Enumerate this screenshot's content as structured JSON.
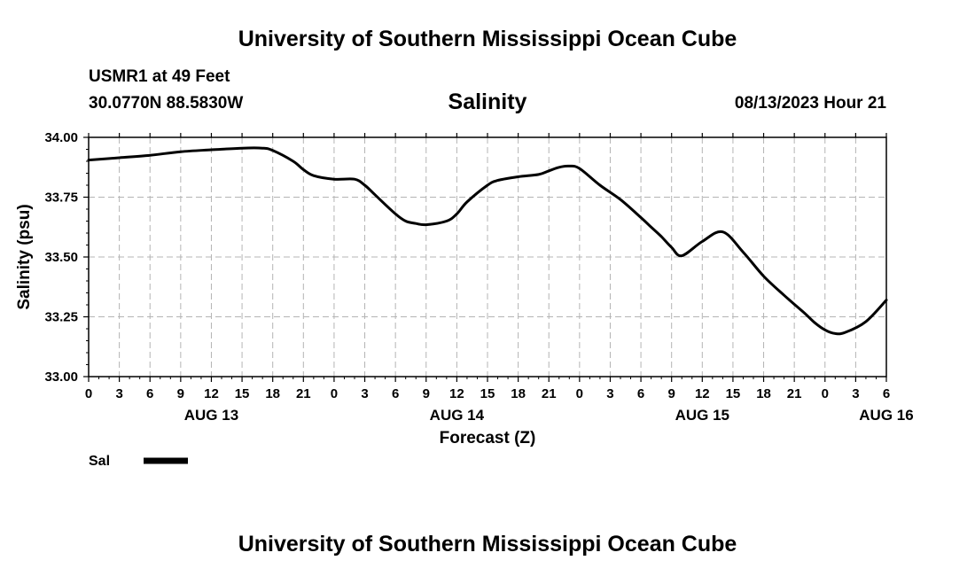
{
  "header": {
    "title_top": "University of Southern Mississippi Ocean Cube",
    "title_bottom": "University of Southern Mississippi Ocean Cube",
    "station": "USMR1 at 49 Feet",
    "coords": "30.0770N  88.5830W",
    "timestamp": "08/13/2023 Hour 21"
  },
  "chart_data": {
    "type": "line",
    "title": "Salinity",
    "xlabel": "Forecast (Z)",
    "ylabel": "Salinity (psu)",
    "ylim": [
      33.0,
      34.0
    ],
    "yticks": [
      "33.00",
      "33.25",
      "33.50",
      "33.75",
      "34.00"
    ],
    "xlim_hours": [
      0,
      78
    ],
    "xtick_labels": [
      "0",
      "3",
      "6",
      "9",
      "12",
      "15",
      "18",
      "21",
      "0",
      "3",
      "6",
      "9",
      "12",
      "15",
      "18",
      "21",
      "0",
      "3",
      "6",
      "9",
      "12",
      "15",
      "18",
      "21",
      "0",
      "3",
      "6"
    ],
    "date_labels": [
      {
        "label": "AUG 13",
        "hour": 12
      },
      {
        "label": "AUG 14",
        "hour": 36
      },
      {
        "label": "AUG 15",
        "hour": 60
      },
      {
        "label": "AUG 16",
        "hour": 78
      }
    ],
    "grid": true,
    "legend": [
      {
        "name": "Sal",
        "style": "thick solid black line",
        "placement": "bottom-left"
      }
    ],
    "series": [
      {
        "name": "Sal",
        "color": "#000000",
        "x": [
          0,
          3,
          6,
          9,
          12,
          15,
          17,
          18,
          20,
          21,
          22,
          24,
          26,
          27,
          28,
          30,
          31,
          32,
          33,
          35,
          36,
          37,
          39,
          40,
          42,
          44,
          45,
          46,
          47,
          48,
          50,
          52,
          54,
          55,
          56,
          57,
          58,
          60,
          62,
          64,
          66,
          68,
          70,
          71,
          72,
          73,
          74,
          76,
          78
        ],
        "y": [
          33.905,
          33.915,
          33.925,
          33.94,
          33.948,
          33.955,
          33.955,
          33.945,
          33.9,
          33.865,
          33.84,
          33.825,
          33.825,
          33.8,
          33.76,
          33.68,
          33.65,
          33.64,
          33.635,
          33.65,
          33.68,
          33.73,
          33.8,
          33.82,
          33.835,
          33.845,
          33.86,
          33.875,
          33.88,
          33.87,
          33.8,
          33.74,
          33.665,
          33.625,
          33.585,
          33.54,
          33.505,
          33.565,
          33.605,
          33.52,
          33.42,
          33.34,
          33.265,
          33.225,
          33.195,
          33.18,
          33.185,
          33.23,
          33.32
        ]
      }
    ]
  }
}
